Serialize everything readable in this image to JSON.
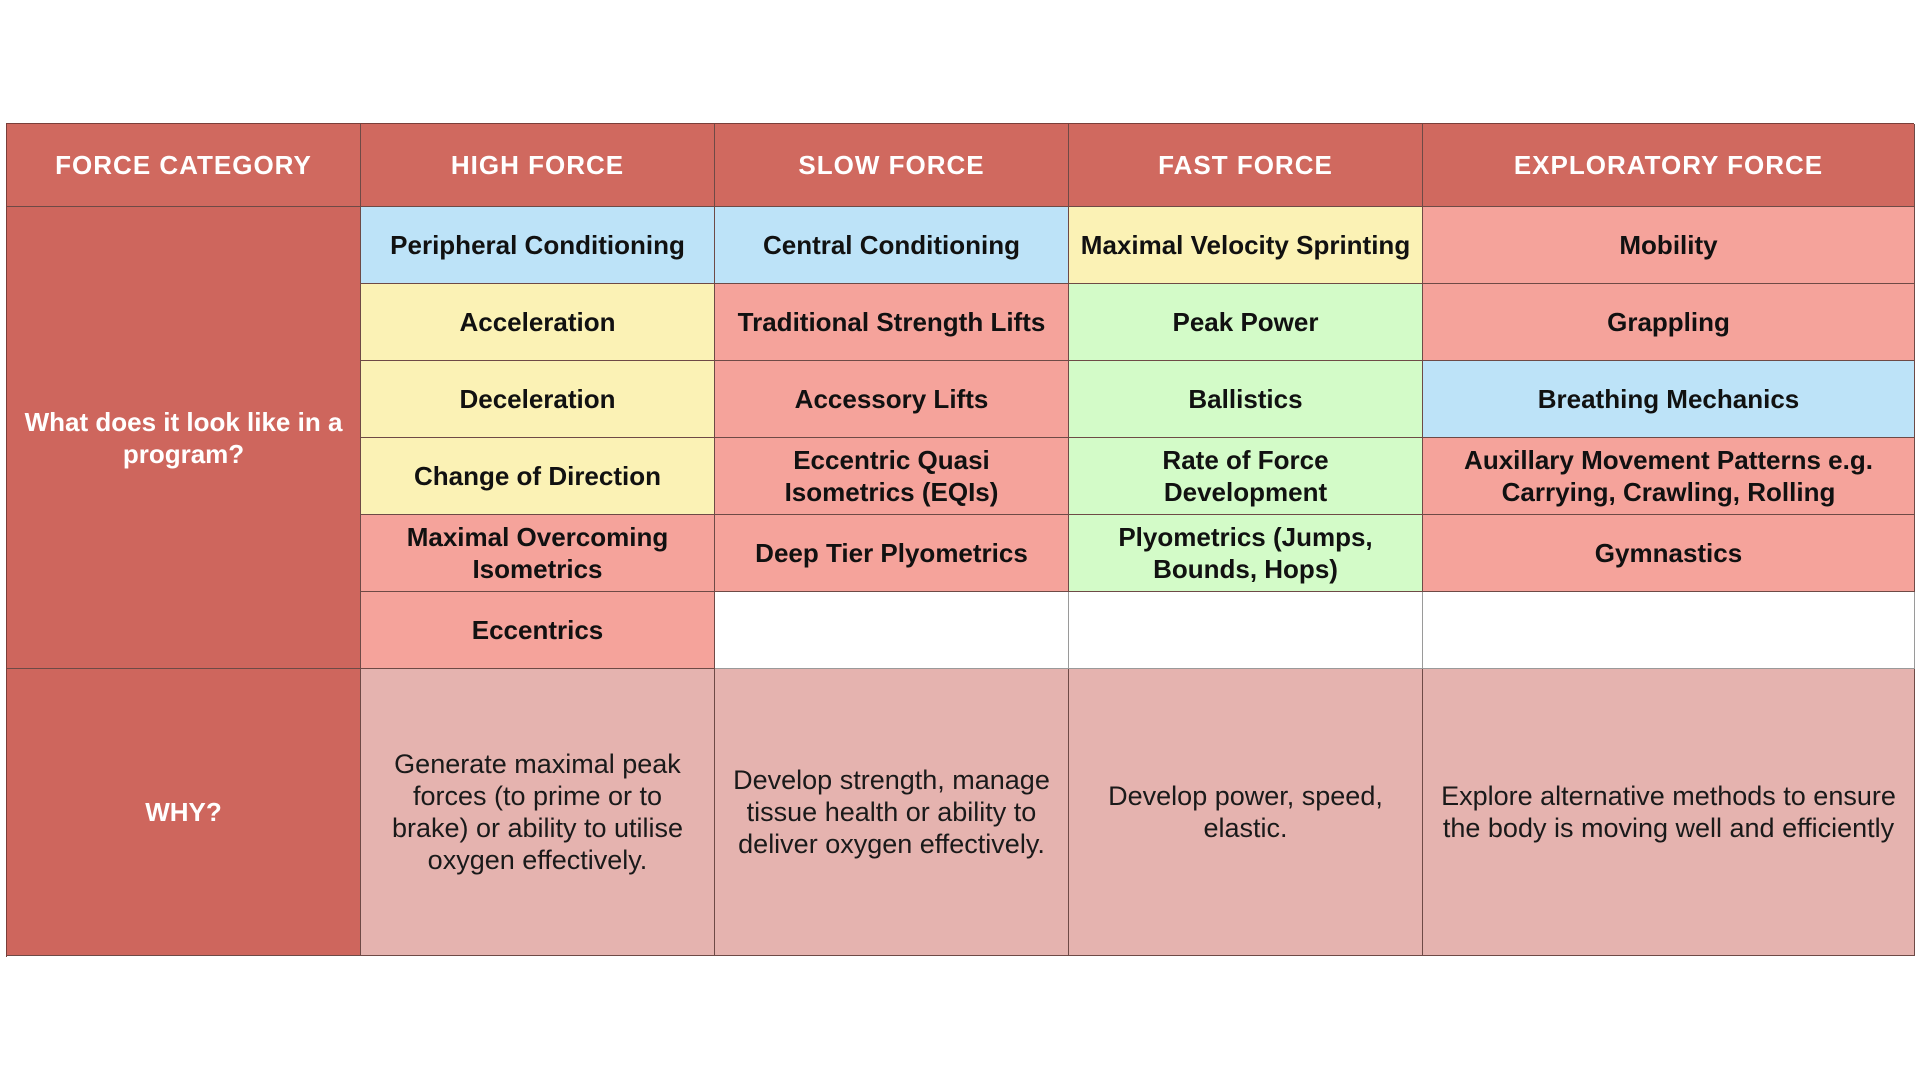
{
  "header": {
    "category": "FORCE CATEGORY",
    "high": "HIGH FORCE",
    "slow": "SLOW FORCE",
    "fast": "FAST FORCE",
    "exploratory": "EXPLORATORY FORCE"
  },
  "program_label": "What does it look like in a program?",
  "why_label": "WHY?",
  "high_force": [
    "Peripheral Conditioning",
    "Acceleration",
    "Deceleration",
    "Change of Direction",
    "Maximal Overcoming Isometrics",
    "Eccentrics"
  ],
  "slow_force": [
    "Central Conditioning",
    "Traditional Strength Lifts",
    "Accessory Lifts",
    "Eccentric Quasi Isometrics (EQIs)",
    "Deep Tier Plyometrics"
  ],
  "fast_force": [
    "Maximal Velocity Sprinting",
    "Peak Power",
    "Ballistics",
    "Rate of Force Development",
    "Plyometrics (Jumps, Bounds, Hops)"
  ],
  "exploratory_force": [
    "Mobility",
    "Grappling",
    "Breathing Mechanics",
    "Auxillary Movement Patterns e.g. Carrying, Crawling, Rolling",
    "Gymnastics"
  ],
  "why": {
    "high": "Generate maximal peak forces (to prime or to brake) or ability to utilise oxygen effectively.",
    "slow": "Develop strength, manage tissue health or ability to deliver oxygen effectively.",
    "fast": "Develop power, speed, elastic.",
    "exploratory": "Explore alternative methods to ensure the body is moving well and efficiently"
  },
  "colors": {
    "header_red": "#d0695f",
    "cell_blue": "#bde3f8",
    "cell_yellow": "#fbf2b5",
    "cell_green": "#d3fbc8",
    "cell_red": "#f5a39b",
    "why_pink": "#e5b3af"
  }
}
